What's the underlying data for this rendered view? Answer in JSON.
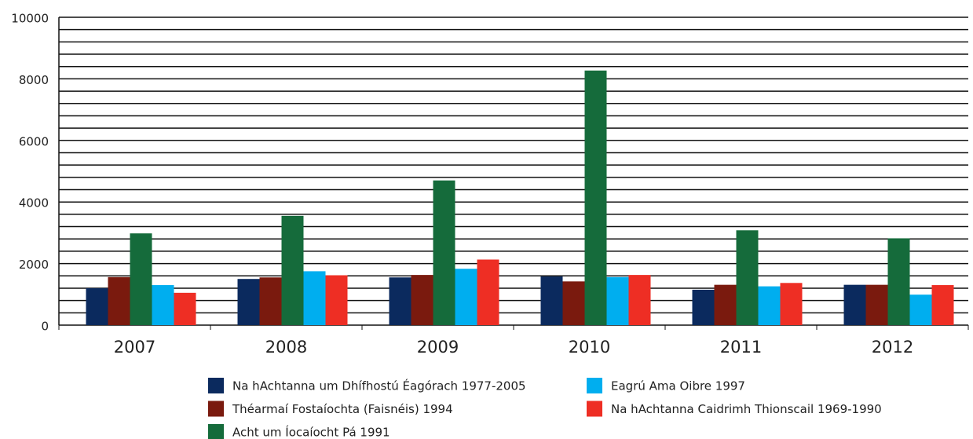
{
  "chart_data": {
    "type": "bar",
    "categories": [
      "2007",
      "2008",
      "2009",
      "2010",
      "2011",
      "2012"
    ],
    "series": [
      {
        "name": "Na hAchtanna um Dhífhostú Éagórach 1977-2005",
        "color": "#0b2a5e",
        "values": [
          1200,
          1500,
          1550,
          1580,
          1150,
          1310
        ]
      },
      {
        "name": "Théarmaí Fostaíochta (Faisnéis) 1994",
        "color": "#7a1a0e",
        "values": [
          1560,
          1550,
          1630,
          1420,
          1310,
          1310
        ]
      },
      {
        "name": "Acht um Íocaíocht Pá 1991",
        "color": "#156b3b",
        "values": [
          2980,
          3550,
          4700,
          8270,
          3080,
          2820
        ]
      },
      {
        "name": "Eagrú Ama Oibre 1997",
        "color": "#00aeef",
        "values": [
          1300,
          1750,
          1830,
          1560,
          1260,
          990
        ]
      },
      {
        "name": "Na hAchtanna Caidrimh Thionscail 1969-1990",
        "color": "#ee2e24",
        "values": [
          1050,
          1620,
          2130,
          1630,
          1370,
          1300
        ]
      }
    ],
    "ylim": [
      0,
      10000
    ],
    "yticks": [
      0,
      2000,
      4000,
      6000,
      8000,
      10000
    ],
    "minor_yticks": [
      400,
      800,
      1200,
      1600,
      2400,
      2800,
      3200,
      3600,
      4400,
      4800,
      5200,
      5600,
      6400,
      6800,
      7200,
      7600,
      8400,
      8800,
      9200,
      9600
    ],
    "grid": true
  }
}
